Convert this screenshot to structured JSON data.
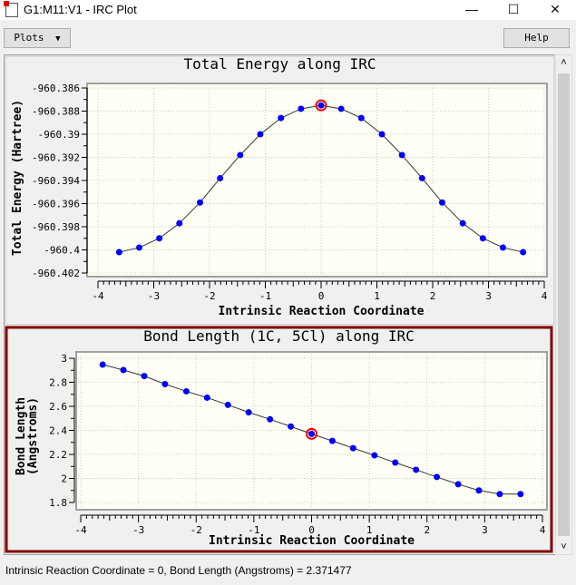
{
  "window": {
    "title": "G1:M11:V1 - IRC Plot",
    "minimize": "—",
    "maximize": "☐",
    "close": "✕"
  },
  "toolbar": {
    "plots_label": "Plots",
    "plots_arrow": "▼",
    "help_label": "Help"
  },
  "scrollbar": {
    "up": "˄",
    "down": "˅"
  },
  "status": "Intrinsic Reaction Coordinate = 0, Bond Length (Angstroms) = 2.371477",
  "colors": {
    "point": "#0000ff",
    "highlight": "#ff0000",
    "selected_border": "#800000",
    "plot_bg": "#fffff5"
  },
  "chart_data": [
    {
      "type": "line",
      "title": "Total Energy along IRC",
      "xlabel": "Intrinsic Reaction Coordinate",
      "ylabel": "Total Energy (Hartree)",
      "xlim": [
        -4,
        4
      ],
      "ylim": [
        -960.402,
        -960.386
      ],
      "xticks": [
        "-4",
        "-3",
        "-2",
        "-1",
        "0",
        "1",
        "2",
        "3",
        "4"
      ],
      "yticks": [
        "-960.386",
        "-960.388",
        "-960.39",
        "-960.392",
        "-960.394",
        "-960.396",
        "-960.398",
        "-960.4",
        "-960.402"
      ],
      "x": [
        -3.62,
        -3.26,
        -2.9,
        -2.54,
        -2.17,
        -1.81,
        -1.45,
        -1.09,
        -0.72,
        -0.36,
        0,
        0.36,
        0.72,
        1.09,
        1.45,
        1.81,
        2.17,
        2.54,
        2.9,
        3.26,
        3.62
      ],
      "y": [
        -960.4002,
        -960.3998,
        -960.399,
        -960.3977,
        -960.3959,
        -960.3938,
        -960.3918,
        -960.39,
        -960.3886,
        -960.3878,
        -960.3875,
        -960.3878,
        -960.3886,
        -960.39,
        -960.3918,
        -960.3938,
        -960.3959,
        -960.3977,
        -960.399,
        -960.3998,
        -960.4002
      ],
      "highlight_index": 10,
      "grid": true
    },
    {
      "type": "line",
      "title": "Bond Length (1C, 5Cl) along IRC",
      "xlabel": "Intrinsic Reaction Coordinate",
      "ylabel": "Bond Length",
      "ylabel2": "(Angstroms)",
      "xlim": [
        -4,
        4
      ],
      "ylim": [
        1.8,
        3
      ],
      "xticks": [
        "-4",
        "-3",
        "-2",
        "-1",
        "0",
        "1",
        "2",
        "3",
        "4"
      ],
      "yticks": [
        "3",
        "2.8",
        "2.6",
        "2.4",
        "2.2",
        "2",
        "1.8"
      ],
      "x": [
        -3.62,
        -3.26,
        -2.9,
        -2.54,
        -2.17,
        -1.81,
        -1.45,
        -1.09,
        -0.72,
        -0.36,
        0,
        0.36,
        0.72,
        1.09,
        1.45,
        1.81,
        2.17,
        2.54,
        2.9,
        3.26,
        3.62
      ],
      "y": [
        2.947,
        2.902,
        2.852,
        2.785,
        2.725,
        2.672,
        2.612,
        2.55,
        2.492,
        2.432,
        2.371,
        2.312,
        2.252,
        2.192,
        2.132,
        2.072,
        2.012,
        1.952,
        1.9,
        1.87,
        1.87
      ],
      "highlight_index": 10,
      "grid": true
    }
  ]
}
